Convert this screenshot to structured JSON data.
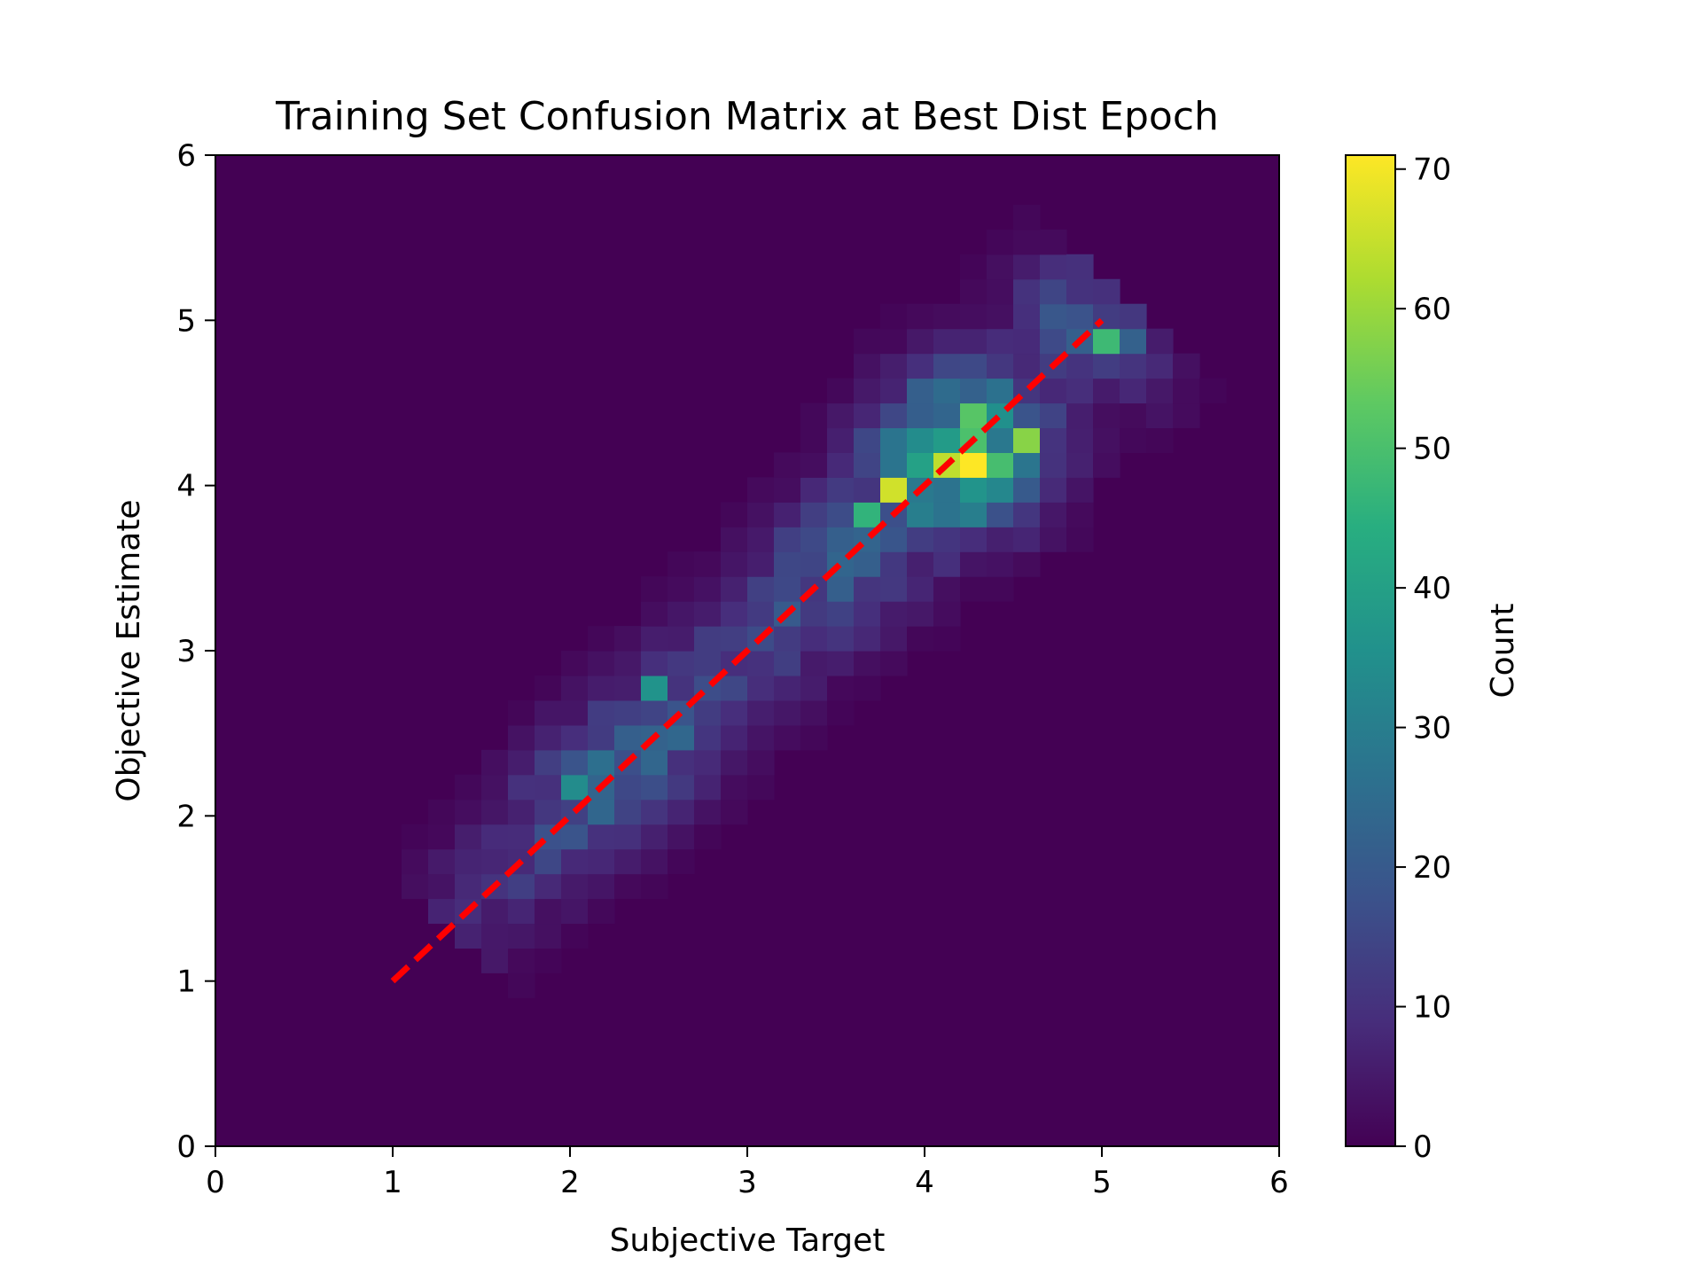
{
  "chart_data": {
    "type": "heatmap",
    "title": "Training Set Confusion Matrix at Best Dist Epoch",
    "xlabel": "Subjective Target",
    "ylabel": "Objective Estimate",
    "xlim": [
      0,
      6
    ],
    "ylim": [
      0,
      6
    ],
    "x_ticks": [
      "0",
      "1",
      "2",
      "3",
      "4",
      "5",
      "6"
    ],
    "y_ticks": [
      "0",
      "1",
      "2",
      "3",
      "4",
      "5",
      "6"
    ],
    "grid": false,
    "colormap": "viridis",
    "bin_size": 0.15,
    "colorbar": {
      "label": "Count",
      "min": 0,
      "max": 71,
      "ticks": [
        "0",
        "10",
        "20",
        "30",
        "40",
        "50",
        "60",
        "70"
      ]
    },
    "reference_line": {
      "style": "dashed",
      "color": "#ff0000",
      "x": [
        1,
        5
      ],
      "y": [
        1,
        5
      ]
    },
    "peaks": [
      {
        "x": 4.27,
        "y": 4.13,
        "value": 71
      },
      {
        "x": 3.82,
        "y": 3.98,
        "value": 66
      },
      {
        "x": 4.12,
        "y": 4.08,
        "value": 64
      },
      {
        "x": 4.57,
        "y": 4.28,
        "value": 58
      },
      {
        "x": 5.02,
        "y": 4.88,
        "value": 48
      },
      {
        "x": 3.67,
        "y": 3.83,
        "value": 46
      },
      {
        "x": 2.47,
        "y": 2.78,
        "value": 36
      },
      {
        "x": 1.97,
        "y": 2.18,
        "value": 34
      },
      {
        "x": 1.42,
        "y": 1.58,
        "value": 8
      }
    ]
  }
}
